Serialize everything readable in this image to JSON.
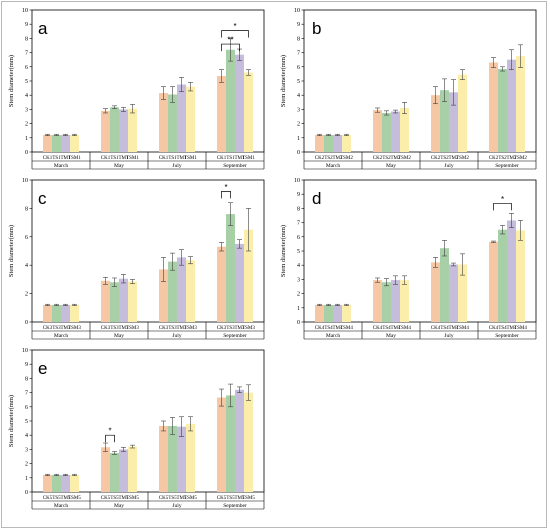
{
  "colors": {
    "CK": "#f6c7a4",
    "TS": "#a7d0a7",
    "TM": "#c6bcdc",
    "TSM": "#fbeeaa",
    "error": "#404040"
  },
  "chart_data": [
    {
      "type": "bar",
      "panel": "a",
      "ylabel": "Stem diameter(mm)",
      "ylim": [
        0,
        10
      ],
      "yticks": [
        "0",
        "1",
        "2",
        "3",
        "4",
        "5",
        "6",
        "7",
        "8",
        "9",
        "10"
      ],
      "months": [
        "March",
        "May",
        "July",
        "September"
      ],
      "treatments": [
        "CK1",
        "TS1",
        "TM1",
        "TSM1"
      ],
      "values": [
        [
          1.2,
          1.2,
          1.2,
          1.2
        ],
        [
          2.9,
          3.15,
          3.0,
          3.05
        ],
        [
          4.15,
          4.05,
          4.75,
          4.6
        ],
        [
          5.35,
          7.2,
          6.85,
          5.6
        ]
      ],
      "errors": [
        [
          0.05,
          0.05,
          0.05,
          0.05
        ],
        [
          0.15,
          0.1,
          0.15,
          0.3
        ],
        [
          0.45,
          0.55,
          0.5,
          0.3
        ],
        [
          0.45,
          0.8,
          0.4,
          0.2
        ]
      ],
      "significance": [
        {
          "month": 3,
          "from": 0,
          "to": 2,
          "y": 7.6,
          "label": "**"
        },
        {
          "month": 3,
          "from": 0,
          "to": 3,
          "y": 8.55,
          "label": "*"
        }
      ]
    },
    {
      "type": "bar",
      "panel": "b",
      "ylabel": "Stem diameter(mm)",
      "ylim": [
        0,
        10
      ],
      "yticks": [
        "0",
        "1",
        "2",
        "3",
        "4",
        "5",
        "6",
        "7",
        "8",
        "9",
        "10"
      ],
      "months": [
        "March",
        "May",
        "July",
        "September"
      ],
      "treatments": [
        "CK2",
        "TS2",
        "TM2",
        "TSM2"
      ],
      "values": [
        [
          1.2,
          1.2,
          1.2,
          1.2
        ],
        [
          2.95,
          2.75,
          2.85,
          3.1
        ],
        [
          4.0,
          4.35,
          4.2,
          5.45
        ],
        [
          6.3,
          5.85,
          6.5,
          6.75
        ]
      ],
      "errors": [
        [
          0.05,
          0.05,
          0.05,
          0.05
        ],
        [
          0.15,
          0.15,
          0.1,
          0.4
        ],
        [
          0.6,
          0.8,
          0.9,
          0.35
        ],
        [
          0.35,
          0.15,
          0.7,
          0.8
        ]
      ],
      "significance": []
    },
    {
      "type": "bar",
      "panel": "c",
      "ylabel": "Stem diameter(mm)",
      "ylim": [
        0,
        10
      ],
      "yticks": [
        "0",
        "2",
        "4",
        "6",
        "8",
        "10"
      ],
      "months": [
        "March",
        "May",
        "July",
        "September"
      ],
      "treatments": [
        "CK3",
        "TS3",
        "TM3",
        "TSM3"
      ],
      "values": [
        [
          1.2,
          1.2,
          1.2,
          1.2
        ],
        [
          2.9,
          2.8,
          3.05,
          2.85
        ],
        [
          3.7,
          4.25,
          4.55,
          4.35
        ],
        [
          5.3,
          7.6,
          5.5,
          6.5
        ]
      ],
      "errors": [
        [
          0.05,
          0.05,
          0.05,
          0.05
        ],
        [
          0.25,
          0.3,
          0.3,
          0.15
        ],
        [
          0.85,
          0.6,
          0.55,
          0.25
        ],
        [
          0.3,
          0.8,
          0.3,
          1.5
        ]
      ],
      "significance": [
        {
          "month": 3,
          "from": 0,
          "to": 1,
          "y": 9.2,
          "label": "*"
        }
      ]
    },
    {
      "type": "bar",
      "panel": "d",
      "ylabel": "Stem diameter(mm)",
      "ylim": [
        0,
        10
      ],
      "yticks": [
        "0",
        "1",
        "2",
        "3",
        "4",
        "5",
        "6",
        "7",
        "8",
        "9",
        "10"
      ],
      "months": [
        "March",
        "May",
        "July",
        "September"
      ],
      "treatments": [
        "CK4",
        "TS4",
        "TM4",
        "TSM4"
      ],
      "values": [
        [
          1.2,
          1.2,
          1.2,
          1.2
        ],
        [
          2.95,
          2.8,
          2.95,
          2.95
        ],
        [
          4.2,
          5.2,
          4.05,
          4.05
        ],
        [
          5.65,
          6.5,
          7.15,
          6.45
        ]
      ],
      "errors": [
        [
          0.05,
          0.05,
          0.05,
          0.05
        ],
        [
          0.15,
          0.25,
          0.3,
          0.3
        ],
        [
          0.35,
          0.55,
          0.1,
          0.75
        ],
        [
          0.05,
          0.3,
          0.5,
          0.7
        ]
      ],
      "significance": [
        {
          "month": 3,
          "from": 0,
          "to": 2,
          "y": 8.35,
          "label": "*"
        }
      ]
    },
    {
      "type": "bar",
      "panel": "e",
      "ylabel": "Stem diameter(mm)",
      "ylim": [
        0,
        10
      ],
      "yticks": [
        "0",
        "1",
        "2",
        "3",
        "4",
        "5",
        "6",
        "7",
        "8",
        "9",
        "10"
      ],
      "months": [
        "March",
        "May",
        "July",
        "September"
      ],
      "treatments": [
        "CK5",
        "TS5",
        "TM5",
        "TSM5"
      ],
      "values": [
        [
          1.2,
          1.2,
          1.2,
          1.2
        ],
        [
          3.15,
          2.75,
          3.0,
          3.2
        ],
        [
          4.65,
          4.65,
          4.6,
          4.8
        ],
        [
          6.65,
          6.8,
          7.2,
          7.0
        ]
      ],
      "errors": [
        [
          0.05,
          0.05,
          0.05,
          0.05
        ],
        [
          0.3,
          0.1,
          0.15,
          0.1
        ],
        [
          0.35,
          0.6,
          0.7,
          0.5
        ],
        [
          0.6,
          0.8,
          0.2,
          0.55
        ]
      ],
      "significance": [
        {
          "month": 1,
          "from": 0,
          "to": 1,
          "y": 4.0,
          "label": "*"
        }
      ]
    }
  ]
}
